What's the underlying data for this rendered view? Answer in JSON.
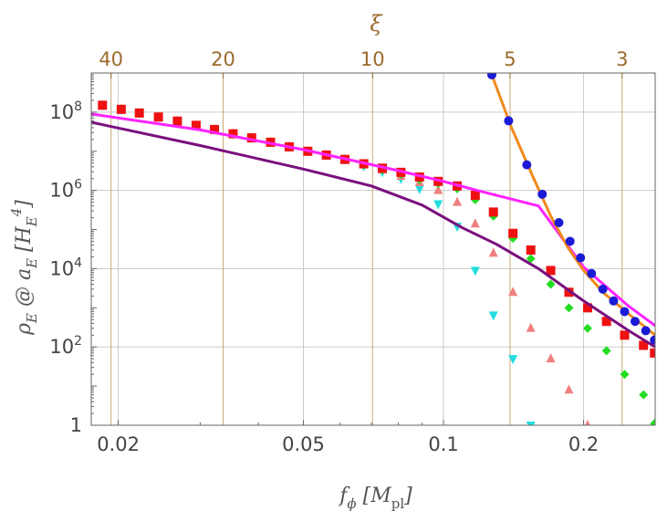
{
  "chart_data": {
    "type": "scatter",
    "title": "",
    "xlabel": "f_ϕ [M_pl]",
    "ylabel": "ρ_E @ a_E [H_E^4]",
    "top_axis_label": "ξ",
    "x_scale": "log",
    "y_scale": "log",
    "xlim": [
      0.0175,
      0.285
    ],
    "ylim": [
      1,
      1000000000
    ],
    "grid": true,
    "x_ticks": [
      {
        "value": 0.02,
        "label": "0.02"
      },
      {
        "value": 0.05,
        "label": "0.05"
      },
      {
        "value": 0.1,
        "label": "0.1"
      },
      {
        "value": 0.2,
        "label": "0.2"
      }
    ],
    "y_ticks": [
      {
        "value": 1,
        "label": "1"
      },
      {
        "value": 100,
        "label": "10^2"
      },
      {
        "value": 10000,
        "label": "10^4"
      },
      {
        "value": 1000000,
        "label": "10^6"
      },
      {
        "value": 100000000,
        "label": "10^8"
      }
    ],
    "top_ticks": [
      {
        "xi": 40,
        "x": 0.0193,
        "label": "40"
      },
      {
        "xi": 20,
        "x": 0.0336,
        "label": "20"
      },
      {
        "xi": 10,
        "x": 0.0704,
        "label": "10"
      },
      {
        "xi": 5,
        "x": 0.139,
        "label": "5"
      },
      {
        "xi": 3,
        "x": 0.242,
        "label": "3"
      }
    ],
    "series": [
      {
        "name": "magenta-line",
        "kind": "line",
        "color": "#ff22ff",
        "x": [
          0.0175,
          0.03,
          0.05,
          0.08,
          0.1,
          0.12,
          0.16,
          0.2,
          0.25,
          0.285
        ],
        "y": [
          90000000,
          35000000,
          11000000,
          3200000,
          1700000,
          950000,
          400000,
          11000,
          1100,
          350
        ]
      },
      {
        "name": "purple-line",
        "kind": "line",
        "color": "#7a0f7e",
        "x": [
          0.0175,
          0.03,
          0.05,
          0.07,
          0.09,
          0.11,
          0.13,
          0.16,
          0.2,
          0.25,
          0.285
        ],
        "y": [
          55000000,
          14000000,
          3500000,
          1300000,
          420000,
          110000,
          42000,
          10000,
          1500,
          260,
          100
        ]
      },
      {
        "name": "orange-line",
        "kind": "line",
        "color": "#f08a1c",
        "x": [
          0.127,
          0.14,
          0.155,
          0.17,
          0.185,
          0.2,
          0.22,
          0.25,
          0.285
        ],
        "y": [
          900000000,
          40000000,
          2500000,
          220000,
          35000,
          9000,
          2500,
          700,
          200
        ]
      },
      {
        "name": "blue-points",
        "kind": "scatter",
        "marker": "circle",
        "color": "#1b1bd6",
        "x": [
          0.127,
          0.138,
          0.151,
          0.163,
          0.177,
          0.187,
          0.197,
          0.208,
          0.22,
          0.232,
          0.245,
          0.258,
          0.272,
          0.284
        ],
        "y": [
          900000000,
          60000000,
          4500000,
          800000,
          150000,
          50000,
          19000,
          7500,
          3000,
          1500,
          800,
          450,
          260,
          150
        ]
      },
      {
        "name": "red-points",
        "kind": "scatter",
        "marker": "square",
        "color": "#ee1111",
        "x": [
          0.0185,
          0.0203,
          0.0222,
          0.0244,
          0.0268,
          0.0294,
          0.0322,
          0.0353,
          0.0387,
          0.0425,
          0.0466,
          0.0511,
          0.056,
          0.0614,
          0.0674,
          0.0739,
          0.081,
          0.0888,
          0.0974,
          0.107,
          0.117,
          0.128,
          0.141,
          0.154,
          0.17,
          0.186,
          0.204,
          0.224,
          0.245,
          0.269,
          0.284
        ],
        "y": [
          150000000,
          118000000,
          95000000,
          75000000,
          59000000,
          46000000,
          36000000,
          28000000,
          22000000,
          17000000,
          13000000,
          10000000,
          8000000,
          6200000,
          4800000,
          3700000,
          2900000,
          2200000,
          1700000,
          1300000,
          750000,
          280000,
          80000,
          30000,
          9000,
          2500,
          1000,
          450,
          200,
          110,
          70
        ]
      },
      {
        "name": "green-points",
        "kind": "scatter",
        "marker": "diamond",
        "color": "#22dd22",
        "x": [
          0.0185,
          0.0203,
          0.0222,
          0.0244,
          0.0268,
          0.0294,
          0.0322,
          0.0353,
          0.0387,
          0.0425,
          0.0466,
          0.0511,
          0.056,
          0.0614,
          0.0674,
          0.0739,
          0.081,
          0.0888,
          0.0974,
          0.107,
          0.117,
          0.128,
          0.141,
          0.154,
          0.17,
          0.186,
          0.204,
          0.224,
          0.245,
          0.269,
          0.284
        ],
        "y": [
          150000000,
          118000000,
          95000000,
          75000000,
          59000000,
          46000000,
          36000000,
          28000000,
          22000000,
          17000000,
          13000000,
          10000000,
          8000000,
          6200000,
          4500000,
          3400000,
          2600000,
          1900000,
          1500000,
          1100000,
          580000,
          220000,
          60000,
          18000,
          4000,
          1000,
          300,
          80,
          20,
          6,
          1.1
        ]
      },
      {
        "name": "pink-points",
        "kind": "scatter",
        "marker": "triangle-up",
        "color": "#f08080",
        "x": [
          0.0185,
          0.0203,
          0.0222,
          0.0244,
          0.0268,
          0.0294,
          0.0322,
          0.0353,
          0.0387,
          0.0425,
          0.0466,
          0.0511,
          0.056,
          0.0614,
          0.0674,
          0.0739,
          0.081,
          0.0888,
          0.0974,
          0.107,
          0.117,
          0.128,
          0.141,
          0.154,
          0.17,
          0.186,
          0.204
        ],
        "y": [
          150000000,
          118000000,
          95000000,
          75000000,
          59000000,
          46000000,
          36000000,
          28000000,
          22000000,
          17000000,
          13000000,
          10000000,
          8000000,
          6200000,
          4500000,
          3300000,
          2300000,
          1600000,
          1000000,
          500000,
          140000,
          25000,
          2500,
          300,
          50,
          8,
          1
        ]
      },
      {
        "name": "cyan-points",
        "kind": "scatter",
        "marker": "triangle-down",
        "color": "#22dddd",
        "x": [
          0.0185,
          0.0203,
          0.0222,
          0.0244,
          0.0268,
          0.0294,
          0.0322,
          0.0353,
          0.0387,
          0.0425,
          0.0466,
          0.0511,
          0.056,
          0.0614,
          0.0674,
          0.0739,
          0.081,
          0.0888,
          0.0974,
          0.107,
          0.117,
          0.128,
          0.141,
          0.154
        ],
        "y": [
          150000000,
          118000000,
          95000000,
          75000000,
          59000000,
          46000000,
          36000000,
          28000000,
          22000000,
          17000000,
          13000000,
          10000000,
          8000000,
          6200000,
          4200000,
          3000000,
          2000000,
          1100000,
          450000,
          120000,
          9000,
          650,
          50,
          1
        ]
      }
    ]
  }
}
